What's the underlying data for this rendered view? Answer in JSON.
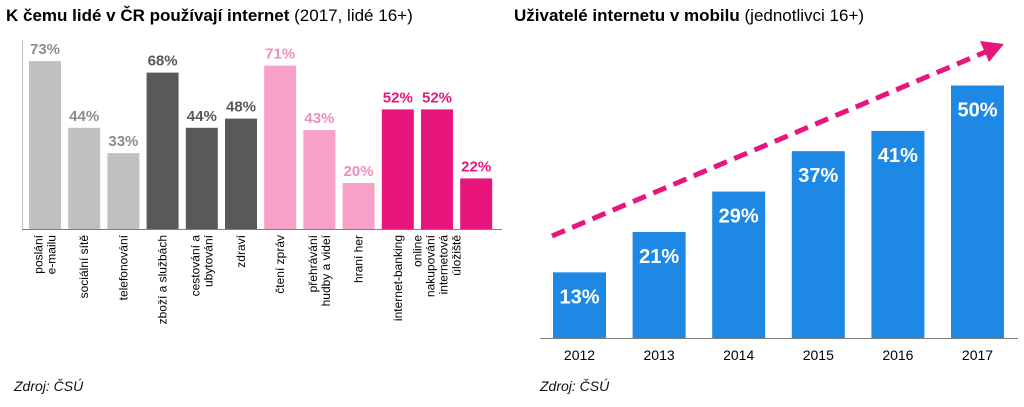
{
  "left": {
    "title": "K čemu lidé v ČR používají internet",
    "subtitle": "(2017, lidé 16+)"
  },
  "right": {
    "title": "Uživatelé internetu v mobilu",
    "subtitle": "(jednotlivci 16+)"
  },
  "source_left": "Zdroj: ČSÚ",
  "source_right": "Zdroj: ČSÚ",
  "chart_data": [
    {
      "type": "bar",
      "title": "K čemu lidé v ČR používají internet",
      "subtitle": "(2017, lidé 16+)",
      "unit": "%",
      "ylim": [
        0,
        80
      ],
      "categories": [
        {
          "lines": [
            "poslání",
            "e-mailu"
          ],
          "value": 73,
          "color": "#c0c0c0",
          "label_color": "#8c8c8c"
        },
        {
          "lines": [
            "sociální sítě"
          ],
          "value": 44,
          "color": "#c0c0c0",
          "label_color": "#8c8c8c"
        },
        {
          "lines": [
            "telefonování"
          ],
          "value": 33,
          "color": "#c0c0c0",
          "label_color": "#8c8c8c"
        },
        {
          "lines": [
            "zboží a službách"
          ],
          "value": 68,
          "color": "#595959",
          "label_color": "#595959"
        },
        {
          "lines": [
            "cestování a",
            "ubytování"
          ],
          "value": 44,
          "color": "#595959",
          "label_color": "#595959"
        },
        {
          "lines": [
            "zdraví"
          ],
          "value": 48,
          "color": "#595959",
          "label_color": "#595959"
        },
        {
          "lines": [
            "čtení zpráv"
          ],
          "value": 71,
          "color": "#f7a1c8",
          "label_color": "#ec8fbe"
        },
        {
          "lines": [
            "přehrávání",
            "hudby a videí"
          ],
          "value": 43,
          "color": "#f7a1c8",
          "label_color": "#ec8fbe"
        },
        {
          "lines": [
            "hraní her"
          ],
          "value": 20,
          "color": "#f7a1c8",
          "label_color": "#ec8fbe"
        },
        {
          "lines": [
            "internet-banking"
          ],
          "value": 52,
          "color": "#e8157c",
          "label_color": "#e8157c"
        },
        {
          "lines": [
            "online",
            "nakupování",
            "internetová",
            "úložiště"
          ],
          "value": 52,
          "color": "#e8157c",
          "label_color": "#e8157c"
        },
        {
          "lines": [
            ""
          ],
          "value": 22,
          "color": "#e8157c",
          "label_color": "#e8157c"
        }
      ],
      "grid": false
    },
    {
      "type": "bar",
      "title": "Uživatelé internetu v mobilu",
      "subtitle": "(jednotlivci 16+)",
      "unit": "%",
      "ylim": [
        0,
        55
      ],
      "categories": [
        "2012",
        "2013",
        "2014",
        "2015",
        "2016",
        "2017"
      ],
      "values": [
        13,
        21,
        29,
        37,
        41,
        50
      ],
      "bar_color": "#1e88e5",
      "label_color": "#ffffff",
      "trend_arrow_color": "#e8157c",
      "grid": false
    }
  ]
}
